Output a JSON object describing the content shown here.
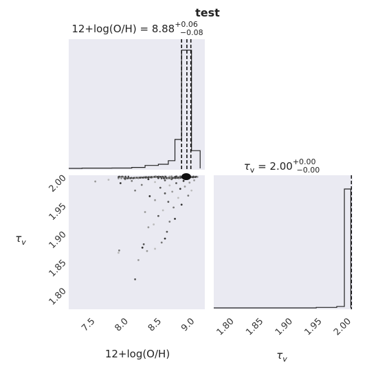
{
  "figure_title": "test",
  "chart_data": [
    {
      "type": "step-histogram",
      "panel": "12+log(O/H) marginal",
      "title": {
        "label": "12+log(O/H) = ",
        "value": "8.88",
        "plus": "+0.06",
        "minus": "−0.08"
      },
      "x_range": [
        7.1,
        9.15
      ],
      "bins": [
        {
          "x0": 7.1,
          "x1": 7.2,
          "count": 0
        },
        {
          "x0": 7.2,
          "x1": 7.3,
          "count": 0
        },
        {
          "x0": 7.3,
          "x1": 7.5,
          "count": 0.2
        },
        {
          "x0": 7.5,
          "x1": 7.75,
          "count": 0.2
        },
        {
          "x0": 7.75,
          "x1": 8.05,
          "count": 0.3
        },
        {
          "x0": 8.05,
          "x1": 8.25,
          "count": 0.8
        },
        {
          "x0": 8.25,
          "x1": 8.45,
          "count": 2.5
        },
        {
          "x0": 8.45,
          "x1": 8.6,
          "count": 3.5
        },
        {
          "x0": 8.6,
          "x1": 8.7,
          "count": 6.5
        },
        {
          "x0": 8.7,
          "x1": 8.8,
          "count": 24.5
        },
        {
          "x0": 8.8,
          "x1": 8.95,
          "count": 100
        },
        {
          "x0": 8.95,
          "x1": 9.08,
          "count": 15
        }
      ],
      "quantile_lines": [
        8.8,
        8.88,
        8.94
      ]
    },
    {
      "type": "scatter",
      "panel": "joint 12+log(O/H) vs tau_v",
      "xlabel": "12+log(O/H)",
      "ylabel": "τ_v",
      "x_range": [
        7.1,
        9.15
      ],
      "y_range": [
        1.765,
        2.002
      ],
      "x_ticks": [
        "7.5",
        "8.0",
        "8.5",
        "9.0"
      ],
      "y_ticks": [
        "1.80",
        "1.85",
        "1.90",
        "1.95",
        "2.00"
      ],
      "points": [
        [
          8.1,
          1.818
        ],
        [
          8.15,
          1.852
        ],
        [
          7.85,
          1.865
        ],
        [
          7.86,
          1.869
        ],
        [
          8.21,
          1.874
        ],
        [
          8.23,
          1.88
        ],
        [
          8.28,
          1.868
        ],
        [
          8.4,
          1.872
        ],
        [
          8.5,
          1.883
        ],
        [
          8.55,
          1.89
        ],
        [
          8.58,
          1.902
        ],
        [
          8.3,
          1.91
        ],
        [
          8.38,
          1.915
        ],
        [
          8.62,
          1.92
        ],
        [
          8.7,
          1.925
        ],
        [
          8.45,
          1.93
        ],
        [
          8.25,
          1.937
        ],
        [
          8.52,
          1.94
        ],
        [
          8.68,
          1.945
        ],
        [
          8.8,
          1.95
        ],
        [
          8.6,
          1.955
        ],
        [
          8.4,
          1.958
        ],
        [
          8.75,
          1.962
        ],
        [
          8.9,
          1.966
        ],
        [
          8.32,
          1.965
        ],
        [
          8.55,
          1.97
        ],
        [
          8.66,
          1.973
        ],
        [
          8.95,
          1.975
        ],
        [
          8.1,
          1.975
        ],
        [
          8.78,
          1.978
        ],
        [
          8.48,
          1.98
        ],
        [
          8.85,
          1.982
        ],
        [
          8.62,
          1.984
        ],
        [
          8.2,
          1.985
        ],
        [
          7.88,
          1.988
        ],
        [
          8.72,
          1.988
        ],
        [
          8.92,
          1.989
        ],
        [
          8.4,
          1.99
        ],
        [
          8.05,
          1.992
        ],
        [
          8.83,
          1.992
        ],
        [
          8.55,
          1.993
        ],
        [
          7.5,
          1.991
        ],
        [
          7.7,
          1.994
        ],
        [
          7.95,
          1.995
        ],
        [
          8.3,
          1.995
        ],
        [
          8.65,
          1.995
        ],
        [
          8.99,
          1.993
        ],
        [
          8.76,
          1.996
        ],
        [
          8.15,
          1.997
        ],
        [
          8.45,
          1.997
        ],
        [
          8.88,
          1.997
        ],
        [
          8.6,
          1.998
        ],
        [
          8.92,
          1.998
        ],
        [
          8.35,
          1.998
        ],
        [
          8.7,
          1.999
        ],
        [
          8.8,
          1.999
        ],
        [
          8.5,
          1.999
        ],
        [
          8.25,
          1.999
        ],
        [
          8.95,
          1.999
        ],
        [
          8.85,
          1.999
        ],
        [
          8.4,
          1.9995
        ],
        [
          8.62,
          1.9995
        ],
        [
          8.74,
          1.9995
        ],
        [
          8.9,
          1.9995
        ],
        [
          8.55,
          1.9995
        ],
        [
          8.78,
          1.9998
        ],
        [
          8.82,
          1.9998
        ],
        [
          8.86,
          1.9998
        ],
        [
          8.88,
          1.9998
        ],
        [
          8.84,
          1.9999
        ],
        [
          8.87,
          1.9999
        ],
        [
          8.89,
          1.9999
        ],
        [
          8.91,
          1.9999
        ],
        [
          8.65,
          1.9999
        ],
        [
          8.72,
          1.9999
        ],
        [
          8.98,
          1.9997
        ]
      ],
      "dense_core": {
        "x": 8.87,
        "y": 1.9995
      }
    },
    {
      "type": "step-histogram",
      "panel": "tau_v marginal",
      "title": {
        "label": "τ_v = ",
        "value": "2.00",
        "plus": "+0.00",
        "minus": "−0.00"
      },
      "xlabel": "τ_v",
      "x_range": [
        1.765,
        2.002
      ],
      "x_ticks": [
        "1.80",
        "1.85",
        "1.90",
        "1.95",
        "2.00"
      ],
      "bins": [
        {
          "x0": 1.765,
          "x1": 1.94,
          "count": 0
        },
        {
          "x0": 1.94,
          "x1": 1.975,
          "count": 0.4
        },
        {
          "x0": 1.975,
          "x1": 1.988,
          "count": 1.2
        },
        {
          "x0": 1.988,
          "x1": 1.999,
          "count": 100
        }
      ],
      "quantile_lines": [
        2.0,
        2.0,
        2.0
      ]
    }
  ]
}
